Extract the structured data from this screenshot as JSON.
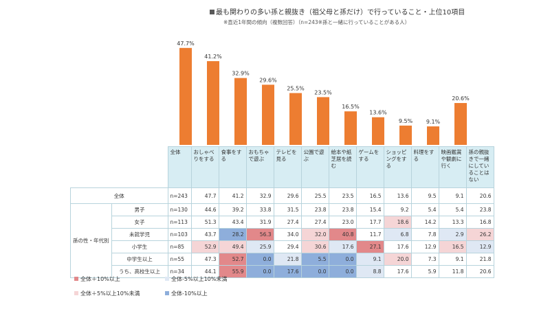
{
  "header": {
    "title": "最も関わりの多い孫と親抜き（祖父母と孫だけ）で行っていること・上位10項目",
    "subtitle": "※直近1年間の傾向（複数回答）（n=243※孫と一緒に行っていることがある人）"
  },
  "chart_data": {
    "type": "bar",
    "categories": [
      "おしゃべりをする",
      "食事をする",
      "おもちゃで遊ぶ",
      "テレビを見る",
      "公園で遊ぶ",
      "絵本や紙芝居を読む",
      "ゲームをする",
      "ショッピングをする",
      "料理をする",
      "映画鑑賞や観劇に行く",
      "孫の親抜きで一緒にしていることはない"
    ],
    "values": [
      47.7,
      41.2,
      32.9,
      29.6,
      25.5,
      23.5,
      16.5,
      13.6,
      9.5,
      9.1,
      20.6
    ],
    "value_labels": [
      "47.7%",
      "41.2%",
      "32.9%",
      "29.6%",
      "25.5%",
      "23.5%",
      "16.5%",
      "13.6%",
      "9.5%",
      "9.1%",
      "20.6%"
    ],
    "ylim": [
      0,
      50
    ],
    "bar_color": "#ed7d31"
  },
  "table": {
    "header_label": "全体",
    "columns": [
      "おしゃべりをする",
      "食事をする",
      "おもちゃで遊ぶ",
      "テレビを見る",
      "公園で遊ぶ",
      "絵本や紙芝居を読む",
      "ゲームをする",
      "ショッピングをする",
      "料理をする",
      "映画鑑賞や観劇に行く",
      "孫の親抜きで一緒にしていることはない"
    ],
    "group_label": "孫の性・年代別",
    "rows": [
      {
        "label": "全体",
        "n": "n=243",
        "values": [
          "47.7",
          "41.2",
          "32.9",
          "29.6",
          "25.5",
          "23.5",
          "16.5",
          "13.6",
          "9.5",
          "9.1",
          "20.6"
        ],
        "shade": [
          "",
          "",
          "",
          "",
          "",
          "",
          "",
          "",
          "",
          "",
          ""
        ]
      },
      {
        "label": "男子",
        "n": "n=130",
        "values": [
          "44.6",
          "39.2",
          "33.8",
          "31.5",
          "23.8",
          "23.8",
          "15.4",
          "9.2",
          "5.4",
          "5.4",
          "23.8"
        ],
        "shade": [
          "",
          "",
          "",
          "",
          "",
          "",
          "",
          "",
          "",
          "",
          ""
        ]
      },
      {
        "label": "女子",
        "n": "n=113",
        "values": [
          "51.3",
          "43.4",
          "31.9",
          "27.4",
          "27.4",
          "23.0",
          "17.7",
          "18.6",
          "14.2",
          "13.3",
          "16.8"
        ],
        "shade": [
          "",
          "",
          "",
          "",
          "",
          "",
          "",
          "h2",
          "",
          "",
          ""
        ]
      },
      {
        "label": "未就学児",
        "n": "n=103",
        "values": [
          "43.7",
          "28.2",
          "56.3",
          "34.0",
          "32.0",
          "40.8",
          "11.7",
          "6.8",
          "7.8",
          "2.9",
          "26.2"
        ],
        "shade": [
          "",
          "l1",
          "h1",
          "",
          "h2",
          "h1",
          "",
          "l2",
          "",
          "l2",
          "h2"
        ]
      },
      {
        "label": "小学生",
        "n": "n=85",
        "values": [
          "52.9",
          "49.4",
          "25.9",
          "29.4",
          "30.6",
          "17.6",
          "27.1",
          "17.6",
          "12.9",
          "16.5",
          "12.9"
        ],
        "shade": [
          "h2",
          "h2",
          "l2",
          "",
          "h2",
          "l2",
          "h1",
          "",
          "",
          "h2",
          "l2"
        ]
      },
      {
        "label": "中学生以上",
        "n": "n=55",
        "values": [
          "47.3",
          "52.7",
          "0.0",
          "21.8",
          "5.5",
          "0.0",
          "9.1",
          "20.0",
          "7.3",
          "9.1",
          "21.8"
        ],
        "shade": [
          "",
          "h1",
          "l1",
          "l2",
          "l1",
          "l1",
          "l2",
          "h2",
          "",
          "",
          ""
        ]
      },
      {
        "label": "うち、高校生以上",
        "n": "n=34",
        "values": [
          "44.1",
          "55.9",
          "0.0",
          "17.6",
          "0.0",
          "0.0",
          "8.8",
          "17.6",
          "5.9",
          "11.8",
          "20.6"
        ],
        "shade": [
          "",
          "h1",
          "l1",
          "l1",
          "l1",
          "l1",
          "l2",
          "",
          "",
          "",
          ""
        ]
      }
    ]
  },
  "legend": [
    {
      "label": "全体＋10%以上",
      "color": "#e2888a"
    },
    {
      "label": "全体-5%以上10%未満",
      "color": "#dfe8f4"
    },
    {
      "label": "全体＋5%以上10%未満",
      "color": "#f5d5d6"
    },
    {
      "label": "全体-10%以上",
      "color": "#8eaedb"
    }
  ]
}
